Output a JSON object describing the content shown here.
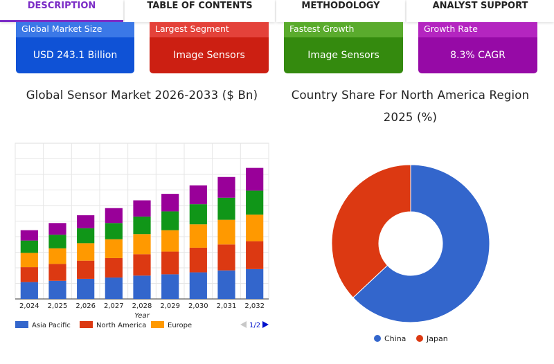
{
  "tabs": [
    {
      "label": "DESCRIPTION",
      "active": true
    },
    {
      "label": "TABLE OF CONTENTS",
      "active": false
    },
    {
      "label": "METHODOLOGY",
      "active": false
    },
    {
      "label": "ANALYST SUPPORT",
      "active": false
    }
  ],
  "cards": [
    {
      "heading": "Global Market Size",
      "value": "USD 243.1 Billion",
      "head_color": "#3b78e7",
      "body_color": "#0f52d6"
    },
    {
      "heading": "Largest Segment",
      "value": "Image Sensors",
      "head_color": "#e4423a",
      "body_color": "#cc1f12"
    },
    {
      "heading": "Fastest Growth",
      "value": "Image Sensors",
      "head_color": "#5aab2d",
      "body_color": "#348a0e"
    },
    {
      "heading": "Growth Rate",
      "value": "8.3% CAGR",
      "head_color": "#b425c0",
      "body_color": "#960aa6"
    }
  ],
  "chart_data": [
    {
      "type": "bar",
      "stacked": true,
      "title": "Global Sensor Market 2026-2033 ($ Bn)",
      "xlabel": "Year",
      "ylabel": "",
      "categories": [
        "2,024",
        "2,025",
        "2,026",
        "2,027",
        "2,028",
        "2,029",
        "2,030",
        "2,031",
        "2,032"
      ],
      "ylim": [
        0,
        240
      ],
      "grid": true,
      "series": [
        {
          "name": "Asia Pacific",
          "color": "#3366cc",
          "values": [
            26,
            28,
            31,
            33,
            36,
            38,
            41,
            44,
            46
          ]
        },
        {
          "name": "North America",
          "color": "#dc3912",
          "values": [
            23,
            26,
            28,
            30,
            33,
            35,
            38,
            40,
            43
          ]
        },
        {
          "name": "Europe",
          "color": "#ff9900",
          "values": [
            22,
            24,
            27,
            29,
            31,
            33,
            36,
            38,
            41
          ]
        },
        {
          "name": "",
          "color": "#109618",
          "values": [
            19,
            21,
            23,
            25,
            27,
            29,
            31,
            34,
            37
          ]
        },
        {
          "name": "",
          "color": "#990099",
          "values": [
            16,
            18,
            20,
            23,
            25,
            27,
            29,
            32,
            35
          ]
        }
      ],
      "legend_position": "bottom",
      "legend_page": "1/2"
    },
    {
      "type": "pie",
      "donut": true,
      "title_lines": [
        "Country Share For North America Region",
        "2025 (%)"
      ],
      "slices": [
        {
          "label": "China",
          "value": 63,
          "color": "#3366cc"
        },
        {
          "label": "Japan",
          "value": 37,
          "color": "#dc3912"
        }
      ],
      "legend_position": "bottom"
    }
  ]
}
